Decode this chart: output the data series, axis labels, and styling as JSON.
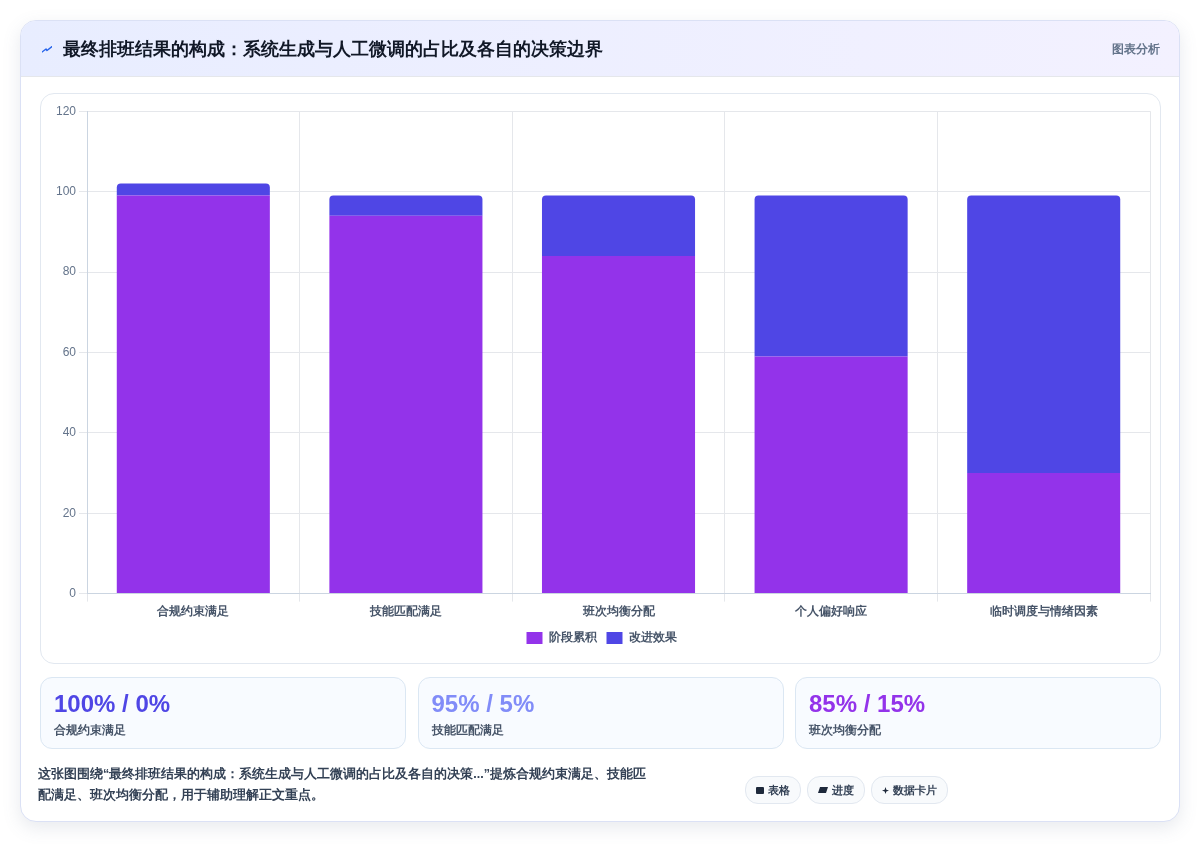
{
  "chart_data": {
    "type": "bar",
    "title": "最终排班结果的构成：系统生成与人工微调的占比及各自的决策边界",
    "categories": [
      "合规约束满足",
      "技能匹配满足",
      "班次均衡分配",
      "个人偏好响应",
      "临时调度与情绪因素"
    ],
    "series": [
      {
        "name": "阶段累积",
        "color": "#9333ea",
        "values": [
          99,
          94,
          84,
          59,
          30
        ]
      },
      {
        "name": "改进效果",
        "color": "#4f46e5",
        "values": [
          3,
          5,
          15,
          40,
          69
        ]
      }
    ],
    "stacked": true,
    "ylim": [
      0,
      120
    ],
    "yticks": [
      0,
      20,
      40,
      60,
      80,
      100,
      120
    ],
    "grid": true,
    "legend": "bottom",
    "annotations": [
      "图表分析",
      "100% / 0%",
      "合规约束满足",
      "95% / 5%",
      "技能匹配满足",
      "85% / 15%",
      "班次均衡分配",
      "这张图围绕“最终排班结果的构成：系统生成与人工微调的占比及各自的决策...”提炼合规约束满足、技能匹配满足、班次均衡分配，用于辅助理解正文重点。",
      "表格",
      "进度",
      "数据卡片"
    ]
  }
}
